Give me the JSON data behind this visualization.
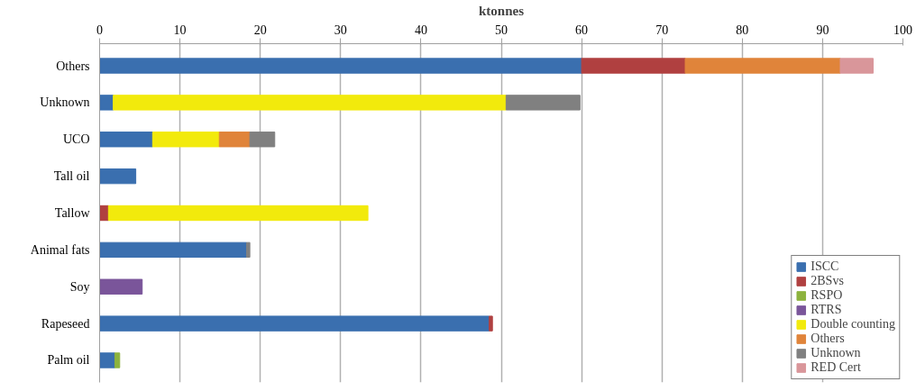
{
  "chart_data": {
    "type": "bar",
    "orientation": "horizontal",
    "stacked": true,
    "xlabel": "ktonnes",
    "categories": [
      "Others",
      "Unknown",
      "UCO",
      "Tall oil",
      "Tallow",
      "Animal fats",
      "Soy",
      "Rapeseed",
      "Palm oil"
    ],
    "series": [
      {
        "name": "ISCC",
        "color": "#3a6faf",
        "values": [
          60,
          1.7,
          6.6,
          4.5,
          null,
          18.3,
          null,
          48.5,
          1.9
        ]
      },
      {
        "name": "2BSvs",
        "color": "#b04040",
        "values": [
          12.9,
          null,
          null,
          null,
          1.1,
          null,
          null,
          0.4,
          null
        ]
      },
      {
        "name": "RSPO",
        "color": "#8db33e",
        "values": [
          null,
          null,
          null,
          null,
          null,
          null,
          null,
          null,
          0.6
        ]
      },
      {
        "name": "RTRS",
        "color": "#7a559a",
        "values": [
          null,
          null,
          null,
          null,
          null,
          null,
          5.3,
          null,
          null
        ]
      },
      {
        "name": "Double counting",
        "color": "#f2ea0c",
        "values": [
          null,
          48.9,
          8.3,
          null,
          32.3,
          null,
          null,
          null,
          null
        ]
      },
      {
        "name": "Others",
        "color": "#e0843a",
        "values": [
          19.3,
          null,
          3.8,
          null,
          null,
          null,
          null,
          null,
          null
        ]
      },
      {
        "name": "Unknown",
        "color": "#808080",
        "values": [
          null,
          9.2,
          3.1,
          null,
          null,
          0.4,
          null,
          null,
          null
        ]
      },
      {
        "name": "RED Cert",
        "color": "#d9969a",
        "values": [
          4.1,
          null,
          null,
          null,
          null,
          null,
          null,
          null,
          null
        ]
      }
    ],
    "xlim": [
      0,
      100
    ],
    "xticks": [
      0,
      10,
      20,
      30,
      40,
      50,
      60,
      70,
      80,
      90,
      100
    ],
    "grid": "x",
    "legend": "bottom right"
  }
}
